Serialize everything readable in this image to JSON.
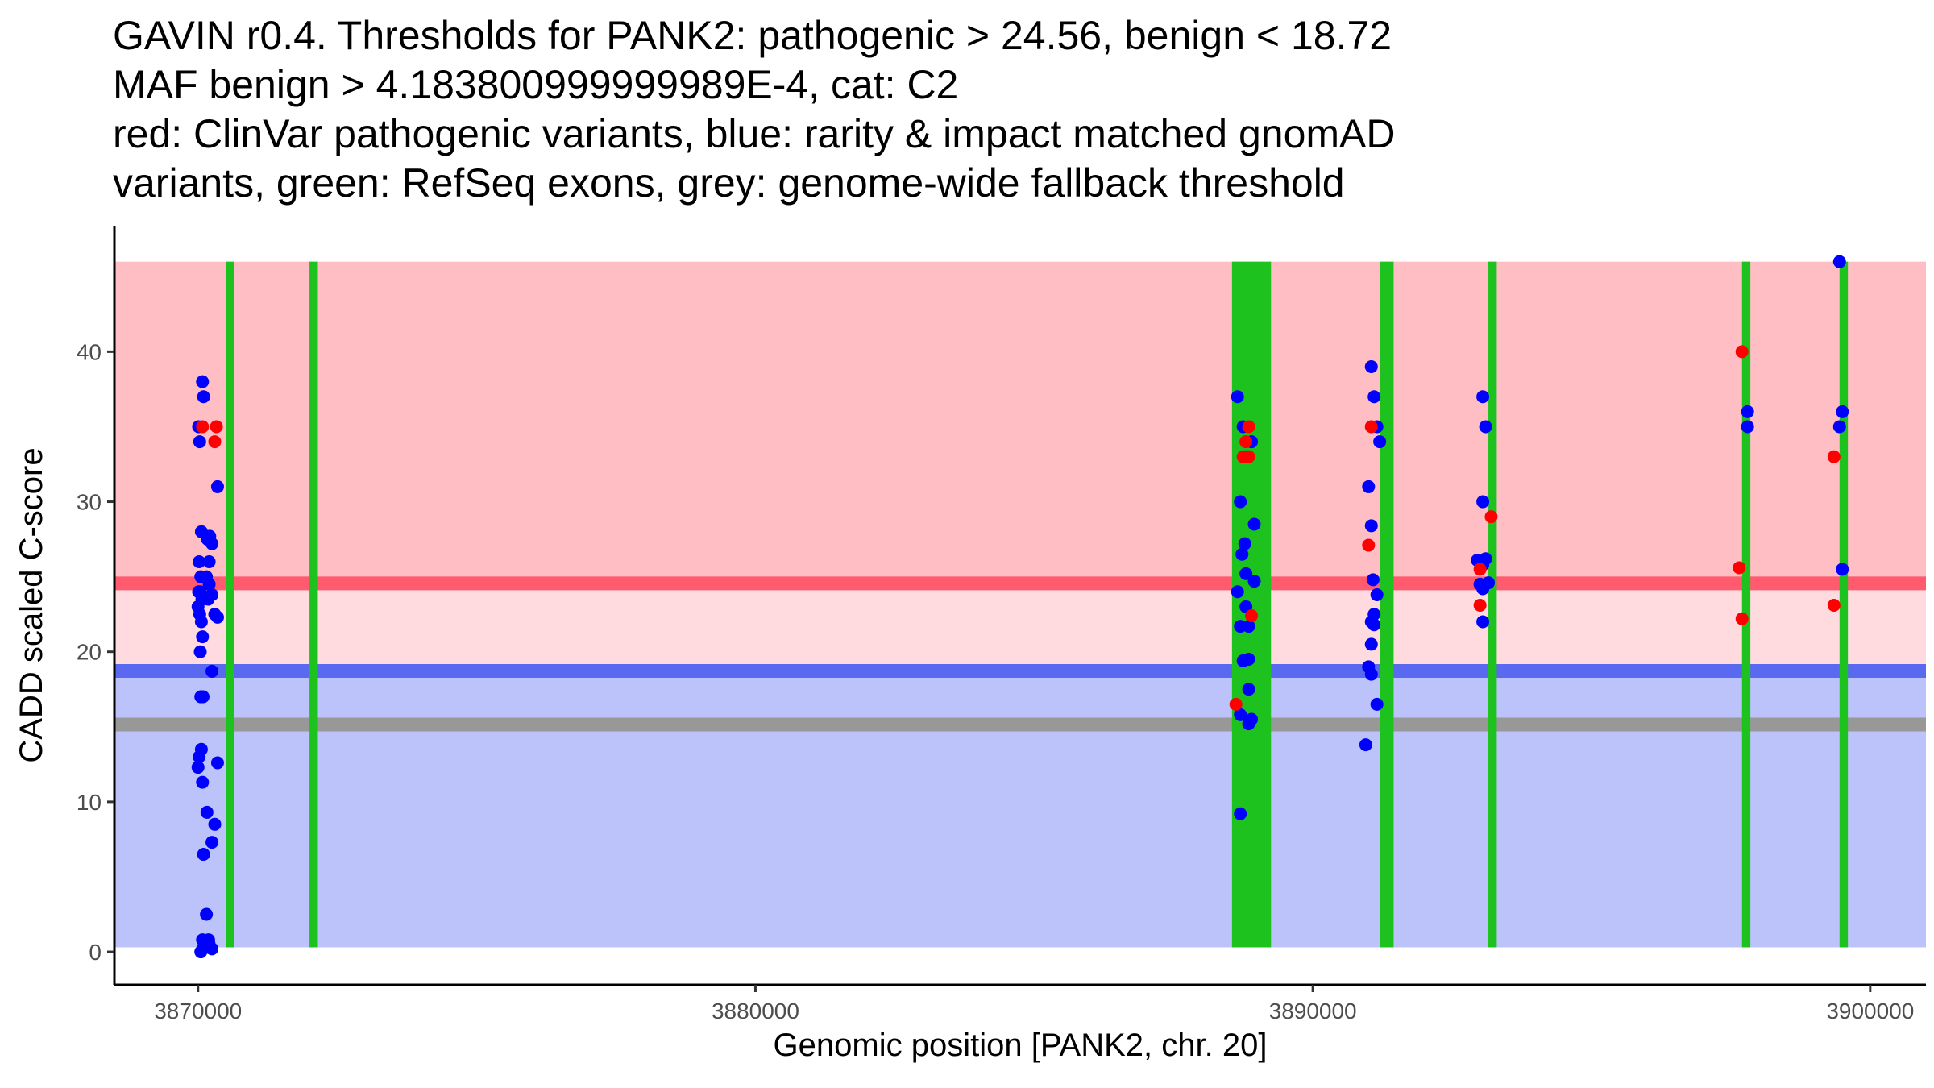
{
  "chart_data": {
    "type": "scatter",
    "title_lines": [
      "GAVIN r0.4. Thresholds for PANK2: pathogenic > 24.56, benign < 18.72",
      "MAF benign > 4.183800999999989E-4, cat: C2",
      "red: ClinVar pathogenic variants, blue: rarity & impact matched gnomAD",
      "variants, green: RefSeq exons, grey: genome-wide fallback threshold"
    ],
    "xlabel": "Genomic position [PANK2, chr. 20]",
    "ylabel": "CADD scaled C-score",
    "xlim": [
      3868500,
      3901000
    ],
    "ylim": [
      -2.2,
      48.4
    ],
    "x_ticks": [
      3870000,
      3880000,
      3890000,
      3900000
    ],
    "x_tick_labels": [
      "3870000",
      "3880000",
      "3890000",
      "3900000"
    ],
    "y_ticks": [
      0,
      10,
      20,
      30,
      40
    ],
    "y_tick_labels": [
      "0",
      "10",
      "20",
      "30",
      "40"
    ],
    "thresholds": {
      "pathogenic": 24.56,
      "benign": 18.72,
      "fallback": 15.15,
      "score_max": 46
    },
    "regions": [
      {
        "name": "pathogenic-region",
        "from": 24.56,
        "to": 46,
        "color": "#ffbdc4"
      },
      {
        "name": "uncertain-region",
        "from": 18.72,
        "to": 24.56,
        "color": "#ffdbe0"
      },
      {
        "name": "benign-region",
        "from": 0.3,
        "to": 18.72,
        "color": "#bcc2fa"
      }
    ],
    "threshold_lines": [
      {
        "name": "pathogenic-threshold-line",
        "y": 24.56,
        "color": "#ff5a6e"
      },
      {
        "name": "benign-threshold-line",
        "y": 18.72,
        "color": "#5a6af0"
      },
      {
        "name": "fallback-threshold-line",
        "y": 15.15,
        "color": "#989898"
      }
    ],
    "exons": [
      {
        "start": 3870500,
        "end": 3870650
      },
      {
        "start": 3872000,
        "end": 3872150
      },
      {
        "start": 3888550,
        "end": 3889250
      },
      {
        "start": 3891200,
        "end": 3891450
      },
      {
        "start": 3893150,
        "end": 3893300
      },
      {
        "start": 3897700,
        "end": 3897850
      },
      {
        "start": 3899450,
        "end": 3899600
      }
    ],
    "colors": {
      "pathogenic": "#ff0000",
      "gnomad": "#0000ff",
      "exon": "#1ec21e"
    },
    "series": [
      {
        "name": "gnomAD",
        "color": "#0000ff",
        "points": [
          [
            3870010,
            35
          ],
          [
            3870030,
            34
          ],
          [
            3870080,
            38
          ],
          [
            3870100,
            37
          ],
          [
            3870060,
            28
          ],
          [
            3870020,
            26
          ],
          [
            3870050,
            25
          ],
          [
            3870010,
            24
          ],
          [
            3870040,
            24
          ],
          [
            3870070,
            23.5
          ],
          [
            3870000,
            23
          ],
          [
            3870030,
            22.5
          ],
          [
            3870060,
            22
          ],
          [
            3870080,
            21
          ],
          [
            3870040,
            20
          ],
          [
            3870050,
            17
          ],
          [
            3870090,
            17
          ],
          [
            3870060,
            13.5
          ],
          [
            3870020,
            13
          ],
          [
            3870000,
            12.3
          ],
          [
            3870080,
            11.3
          ],
          [
            3870100,
            6.5
          ],
          [
            3870160,
            9.3
          ],
          [
            3870150,
            2.5
          ],
          [
            3870080,
            0.8
          ],
          [
            3870050,
            0
          ],
          [
            3870100,
            0.3
          ],
          [
            3870200,
            0.5
          ],
          [
            3870250,
            0.2
          ],
          [
            3870150,
            0.3
          ],
          [
            3870190,
            0.8
          ],
          [
            3870170,
            27.5
          ],
          [
            3870210,
            27.7
          ],
          [
            3870250,
            27.2
          ],
          [
            3870350,
            31
          ],
          [
            3870200,
            26
          ],
          [
            3870150,
            25
          ],
          [
            3870200,
            24.5
          ],
          [
            3870180,
            23.5
          ],
          [
            3870250,
            23.8
          ],
          [
            3870300,
            22.5
          ],
          [
            3870350,
            22.3
          ],
          [
            3870250,
            18.7
          ],
          [
            3870350,
            12.6
          ],
          [
            3870300,
            8.5
          ],
          [
            3870250,
            7.3
          ],
          [
            3888650,
            37
          ],
          [
            3888700,
            30
          ],
          [
            3888750,
            35
          ],
          [
            3888800,
            33
          ],
          [
            3888780,
            27.2
          ],
          [
            3888730,
            26.5
          ],
          [
            3888800,
            25.2
          ],
          [
            3888650,
            24
          ],
          [
            3888800,
            23
          ],
          [
            3888700,
            21.7
          ],
          [
            3888850,
            21.7
          ],
          [
            3888750,
            19.4
          ],
          [
            3888850,
            19.5
          ],
          [
            3888850,
            17.5
          ],
          [
            3888700,
            15.8
          ],
          [
            3888850,
            15.2
          ],
          [
            3888900,
            15.5
          ],
          [
            3888700,
            9.2
          ],
          [
            3888900,
            34
          ],
          [
            3888950,
            28.5
          ],
          [
            3888950,
            24.7
          ],
          [
            3891050,
            39
          ],
          [
            3891100,
            37
          ],
          [
            3891150,
            35
          ],
          [
            3891200,
            34
          ],
          [
            3891000,
            31
          ],
          [
            3891050,
            28.4
          ],
          [
            3891080,
            24.8
          ],
          [
            3891150,
            23.8
          ],
          [
            3891100,
            22.5
          ],
          [
            3891050,
            22
          ],
          [
            3891100,
            21.8
          ],
          [
            3891050,
            20.5
          ],
          [
            3891000,
            19
          ],
          [
            3891050,
            18.5
          ],
          [
            3891150,
            16.5
          ],
          [
            3890950,
            13.8
          ],
          [
            3893050,
            37
          ],
          [
            3893100,
            35
          ],
          [
            3893050,
            30
          ],
          [
            3892950,
            26.1
          ],
          [
            3893050,
            25.8
          ],
          [
            3893100,
            26.2
          ],
          [
            3893000,
            24.5
          ],
          [
            3893050,
            24.2
          ],
          [
            3893150,
            24.6
          ],
          [
            3893050,
            22
          ],
          [
            3897800,
            36
          ],
          [
            3897800,
            35
          ],
          [
            3899450,
            46
          ],
          [
            3899500,
            36
          ],
          [
            3899450,
            35
          ],
          [
            3899500,
            25.5
          ]
        ]
      },
      {
        "name": "ClinVar pathogenic",
        "color": "#ff0000",
        "points": [
          [
            3870080,
            35
          ],
          [
            3870330,
            35
          ],
          [
            3870300,
            34
          ],
          [
            3888850,
            35
          ],
          [
            3888800,
            34
          ],
          [
            3888750,
            33
          ],
          [
            3888850,
            33
          ],
          [
            3888900,
            22.4
          ],
          [
            3888620,
            16.5
          ],
          [
            3891050,
            35
          ],
          [
            3891000,
            27.1
          ],
          [
            3893200,
            29
          ],
          [
            3893000,
            25.5
          ],
          [
            3893000,
            23.1
          ],
          [
            3897700,
            40
          ],
          [
            3897650,
            25.6
          ],
          [
            3897700,
            22.2
          ],
          [
            3899350,
            33
          ],
          [
            3899350,
            23.1
          ]
        ]
      }
    ]
  }
}
